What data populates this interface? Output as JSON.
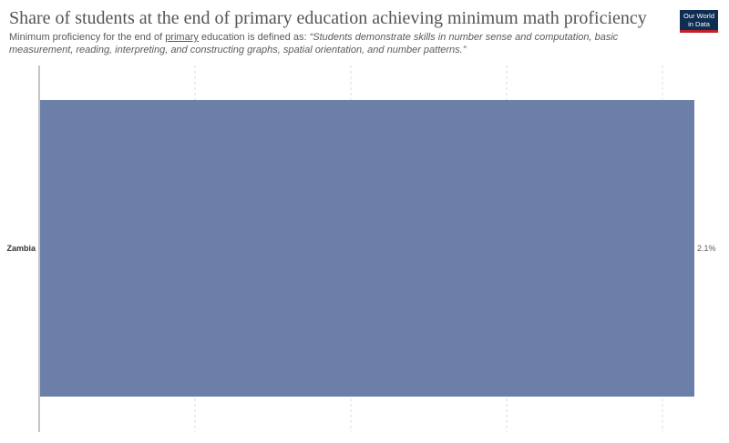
{
  "header": {
    "title": "Share of students at the end of primary education achieving minimum math proficiency",
    "subtitle_prefix": "Minimum proficiency for the end of ",
    "subtitle_link": "primary",
    "subtitle_mid": " education is defined as: ",
    "subtitle_quote": "“Students demonstrate skills in number sense and computation, basic measurement, reading, interpreting, and constructing graphs, spatial orientation, and number patterns.”"
  },
  "logo": {
    "line1": "Our World",
    "line2": "in Data"
  },
  "colors": {
    "bar": "#6b7fa8",
    "grid": "#dddddd",
    "axis": "#888888"
  },
  "chart_data": {
    "type": "bar",
    "orientation": "horizontal",
    "categories": [
      "Zambia"
    ],
    "values": [
      2.1
    ],
    "value_labels": [
      "2.1%"
    ],
    "xlim": [
      0,
      2.1
    ],
    "grid": true
  }
}
